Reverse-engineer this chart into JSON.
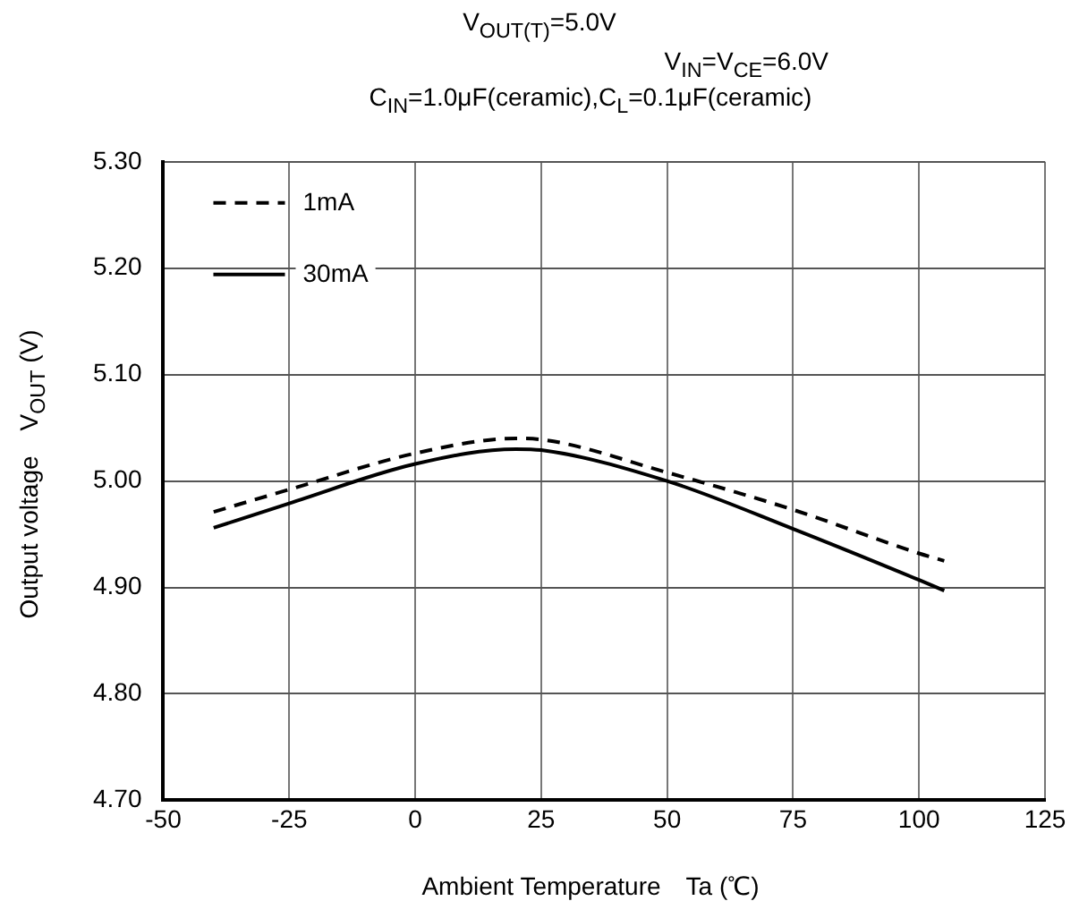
{
  "chart_data": {
    "type": "line",
    "title": "V$_{OUT(T)}$=5.0V",
    "subtitle": "V$_{IN}$=V$_{CE}$=6.0V",
    "annotations": [
      "C$_{IN}$=1.0μF(ceramic),C$_{L}$=0.1μF(ceramic)"
    ],
    "xlabel": "Ambient Temperature　Ta (℃)",
    "ylabel": "Output voltage　V$_{OUT}$ (V)",
    "x": [
      -40,
      -25,
      0,
      20,
      25,
      50,
      75,
      100,
      105
    ],
    "series": [
      {
        "name": "1mA",
        "color": "#000000",
        "line_style": "dashed",
        "values": [
          4.971,
          4.992,
          5.026,
          5.04,
          5.039,
          5.008,
          4.973,
          4.932,
          4.925
        ]
      },
      {
        "name": "30mA",
        "color": "#000000",
        "line_style": "solid",
        "values": [
          4.956,
          4.979,
          5.016,
          5.03,
          5.029,
          5.0,
          4.955,
          4.907,
          4.897
        ]
      }
    ],
    "xlim": [
      -50,
      125
    ],
    "xticks": [
      -50,
      -25,
      0,
      25,
      50,
      75,
      100,
      125
    ],
    "ylim": [
      4.7,
      5.3
    ],
    "yticks": [
      {
        "value": 4.7,
        "label": "4.70"
      },
      {
        "value": 4.8,
        "label": "4.80"
      },
      {
        "value": 4.9,
        "label": "4.90"
      },
      {
        "value": 5.0,
        "label": "5.00"
      },
      {
        "value": 5.1,
        "label": "5.10"
      },
      {
        "value": 5.2,
        "label": "5.20"
      },
      {
        "value": 5.3,
        "label": "5.30"
      }
    ],
    "grid": true,
    "legend": "top left",
    "marker": "none"
  }
}
